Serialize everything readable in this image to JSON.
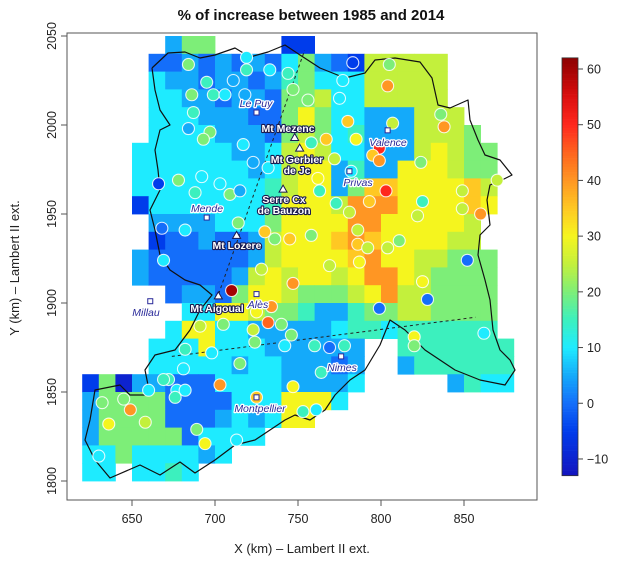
{
  "chart_data": {
    "type": "heatmap",
    "title": "% of increase between 1985 and 2014",
    "xlabel": "X (km) – Lambert II ext.",
    "ylabel": "Y (km) – Lambert II ext.",
    "xlim": [
      611,
      894
    ],
    "ylim": [
      1789,
      2052
    ],
    "x_ticks": [
      650,
      700,
      750,
      800,
      850
    ],
    "y_ticks": [
      1800,
      1850,
      1900,
      1950,
      2000,
      2050
    ],
    "grid": false,
    "colorbar": {
      "range": [
        -13,
        62
      ],
      "ticks": [
        -10,
        0,
        10,
        20,
        30,
        40,
        50,
        60
      ],
      "placement": "right"
    },
    "grid_cells": {
      "cell_size_km": 10,
      "x_centers_start": 625,
      "y_centers_start_top": 2045,
      "code_values": {
        "A": -10,
        "B": -5,
        "C": 0,
        "D": 5,
        "E": 10,
        "F": 15,
        "G": 20,
        "H": 25,
        "I": 30,
        "J": 35,
        "K": 40
      },
      "rows": [
        ".....DGG....BB............",
        "....CCDCDCDCEGDCBHHHHH....",
        "....EDDCDDCDFGEEEHHHHH....",
        "....EEDDCDDCGGHEEHHHHH....",
        "....EEEDDDCCGIGEEDDDHHH...",
        "....EEEEDDDCGHGEFDDDHHHG..",
        "...EEEEEEDDEHIHEEDDDHIHGG.",
        "...EEEEEEEDEHIIDFDDIIIHGG.",
        "...EEEEEEEEFHIIDGJJIIIIJH.",
        "...BEEEEEEEFIIIHKKKIIIIJI.",
        "....DDDDEEEGIIIIKKIIIIIH..",
        "....BCCDCCDHIIIJKJIIIIHH..",
        "...DCCCCCCDHIIIIJKIIHHGGG.",
        "...DCCCCCDHIHIIHIKKIHGGGG.",
        ".....CDDCGIIHGGGHIKHHGGGG.",
        "......EEIIHGGFDDFGGHHGGGG.",
        ".....EIIEEDDDDDEFFEFFFFFF",
        "....EEEIEEEDDDDDD..FFFFFFF",
        "....EEEEEDEEDDDCD..DFFFFFF",
        "BGADDCCCEEEEDDDDE.....DFEE",
        "DGGGGCCCCEEEIIIE..........",
        "DGGGGCCCDEDEII............",
        "DGGGGGCEEEE...............",
        "EEGEEEEDE.................",
        "EE.EEFE..................."
      ]
    },
    "stations": [
      [
        684,
        2034,
        20
      ],
      [
        719,
        2038,
        10
      ],
      [
        695,
        2024,
        15
      ],
      [
        711,
        2025,
        5
      ],
      [
        686,
        2017,
        20
      ],
      [
        699,
        2017,
        15
      ],
      [
        706,
        2017,
        10
      ],
      [
        718,
        2017,
        5
      ],
      [
        719,
        2031,
        15
      ],
      [
        733,
        2031,
        10
      ],
      [
        744,
        2029,
        15
      ],
      [
        747,
        2020,
        20
      ],
      [
        687,
        2007,
        15
      ],
      [
        684,
        1998,
        5
      ],
      [
        697,
        1996,
        20
      ],
      [
        693,
        1992,
        20
      ],
      [
        717,
        1989,
        10
      ],
      [
        723,
        1979,
        5
      ],
      [
        732,
        1976,
        10
      ],
      [
        666,
        1967,
        -5
      ],
      [
        678,
        1969,
        20
      ],
      [
        692,
        1971,
        10
      ],
      [
        703,
        1967,
        10
      ],
      [
        688,
        1962,
        15
      ],
      [
        709,
        1961,
        20
      ],
      [
        715,
        1963,
        5
      ],
      [
        668,
        1942,
        0
      ],
      [
        682,
        1941,
        10
      ],
      [
        714,
        1945,
        20
      ],
      [
        730,
        1940,
        35
      ],
      [
        736,
        1936,
        20
      ],
      [
        745,
        1936,
        35
      ],
      [
        669,
        1924,
        10
      ],
      [
        783,
        2035,
        -5
      ],
      [
        805,
        2034,
        20
      ],
      [
        804,
        2022,
        40
      ],
      [
        777,
        2025,
        10
      ],
      [
        775,
        2015,
        10
      ],
      [
        756,
        2014,
        20
      ],
      [
        780,
        2002,
        35
      ],
      [
        807,
        2001,
        25
      ],
      [
        836,
        2006,
        20
      ],
      [
        838,
        1999,
        40
      ],
      [
        767,
        1992,
        35
      ],
      [
        758,
        1990,
        15
      ],
      [
        785,
        1992,
        30
      ],
      [
        799,
        1987,
        50
      ],
      [
        795,
        1983,
        35
      ],
      [
        799,
        1980,
        40
      ],
      [
        772,
        1981,
        25
      ],
      [
        824,
        1979,
        20
      ],
      [
        782,
        1974,
        10
      ],
      [
        762,
        1970,
        30
      ],
      [
        763,
        1963,
        15
      ],
      [
        803,
        1963,
        50
      ],
      [
        849,
        1963,
        25
      ],
      [
        870,
        1969,
        25
      ],
      [
        773,
        1956,
        15
      ],
      [
        781,
        1951,
        25
      ],
      [
        793,
        1957,
        35
      ],
      [
        825,
        1957,
        15
      ],
      [
        849,
        1953,
        25
      ],
      [
        860,
        1950,
        40
      ],
      [
        822,
        1949,
        25
      ],
      [
        786,
        1941,
        25
      ],
      [
        786,
        1933,
        35
      ],
      [
        792,
        1931,
        25
      ],
      [
        804,
        1931,
        25
      ],
      [
        811,
        1935,
        20
      ],
      [
        769,
        1921,
        25
      ],
      [
        852,
        1924,
        0
      ],
      [
        710,
        1907,
        60
      ],
      [
        747,
        1911,
        40
      ],
      [
        728,
        1919,
        25
      ],
      [
        758,
        1938,
        20
      ],
      [
        734,
        1898,
        40
      ],
      [
        732,
        1889,
        45
      ],
      [
        725,
        1895,
        30
      ],
      [
        705,
        1888,
        20
      ],
      [
        691,
        1887,
        25
      ],
      [
        723,
        1885,
        25
      ],
      [
        740,
        1888,
        20
      ],
      [
        746,
        1882,
        20
      ],
      [
        724,
        1878,
        20
      ],
      [
        742,
        1876,
        10
      ],
      [
        760,
        1876,
        15
      ],
      [
        769,
        1875,
        0
      ],
      [
        778,
        1876,
        15
      ],
      [
        820,
        1881,
        30
      ],
      [
        820,
        1876,
        20
      ],
      [
        862,
        1883,
        10
      ],
      [
        682,
        1874,
        15
      ],
      [
        698,
        1872,
        10
      ],
      [
        715,
        1866,
        20
      ],
      [
        681,
        1863,
        10
      ],
      [
        672,
        1857,
        15
      ],
      [
        669,
        1857,
        15
      ],
      [
        677,
        1851,
        10
      ],
      [
        682,
        1851,
        10
      ],
      [
        676,
        1847,
        15
      ],
      [
        660,
        1851,
        10
      ],
      [
        703,
        1854,
        40
      ],
      [
        747,
        1853,
        30
      ],
      [
        725,
        1847,
        35
      ],
      [
        632,
        1844,
        20
      ],
      [
        645,
        1846,
        20
      ],
      [
        649,
        1840,
        40
      ],
      [
        636,
        1832,
        30
      ],
      [
        658,
        1833,
        25
      ],
      [
        689,
        1829,
        20
      ],
      [
        694,
        1821,
        30
      ],
      [
        713,
        1823,
        10
      ],
      [
        753,
        1839,
        15
      ],
      [
        761,
        1840,
        10
      ],
      [
        630,
        1814,
        10
      ],
      [
        764,
        1861,
        15
      ],
      [
        799,
        1897,
        0
      ],
      [
        828,
        1902,
        0
      ],
      [
        825,
        1912,
        30
      ],
      [
        787,
        1923,
        30
      ]
    ],
    "dashed_lines": [
      [
        [
          701,
          1902
        ],
        [
          754,
          2042
        ]
      ],
      [
        [
          674,
          1870
        ],
        [
          857,
          1892
        ]
      ]
    ],
    "cities": [
      {
        "name": "Le Puy",
        "x": 725,
        "y": 2007
      },
      {
        "name": "Valence",
        "x": 804,
        "y": 1997
      },
      {
        "name": "Privas",
        "x": 781,
        "y": 1974
      },
      {
        "name": "Mende",
        "x": 695,
        "y": 1948
      },
      {
        "name": "Millau",
        "x": 661,
        "y": 1901
      },
      {
        "name": "Alès",
        "x": 725,
        "y": 1905
      },
      {
        "name": "Nimes",
        "x": 776,
        "y": 1870
      },
      {
        "name": "Montpellier",
        "x": 725,
        "y": 1847
      }
    ],
    "peaks": [
      {
        "name": "Mt Mezenc",
        "x": 748,
        "y": 1993
      },
      {
        "name_line1": "Mt Gerbier",
        "name_line2": "de Jc",
        "x": 751,
        "y": 1987
      },
      {
        "name_line1": "Serre Cx",
        "name_line2": "de Bauzon",
        "x": 741,
        "y": 1964
      },
      {
        "name": "Mt Lozere",
        "x": 713,
        "y": 1938
      },
      {
        "name": "Mt Aigoual",
        "x": 702,
        "y": 1904
      }
    ]
  }
}
